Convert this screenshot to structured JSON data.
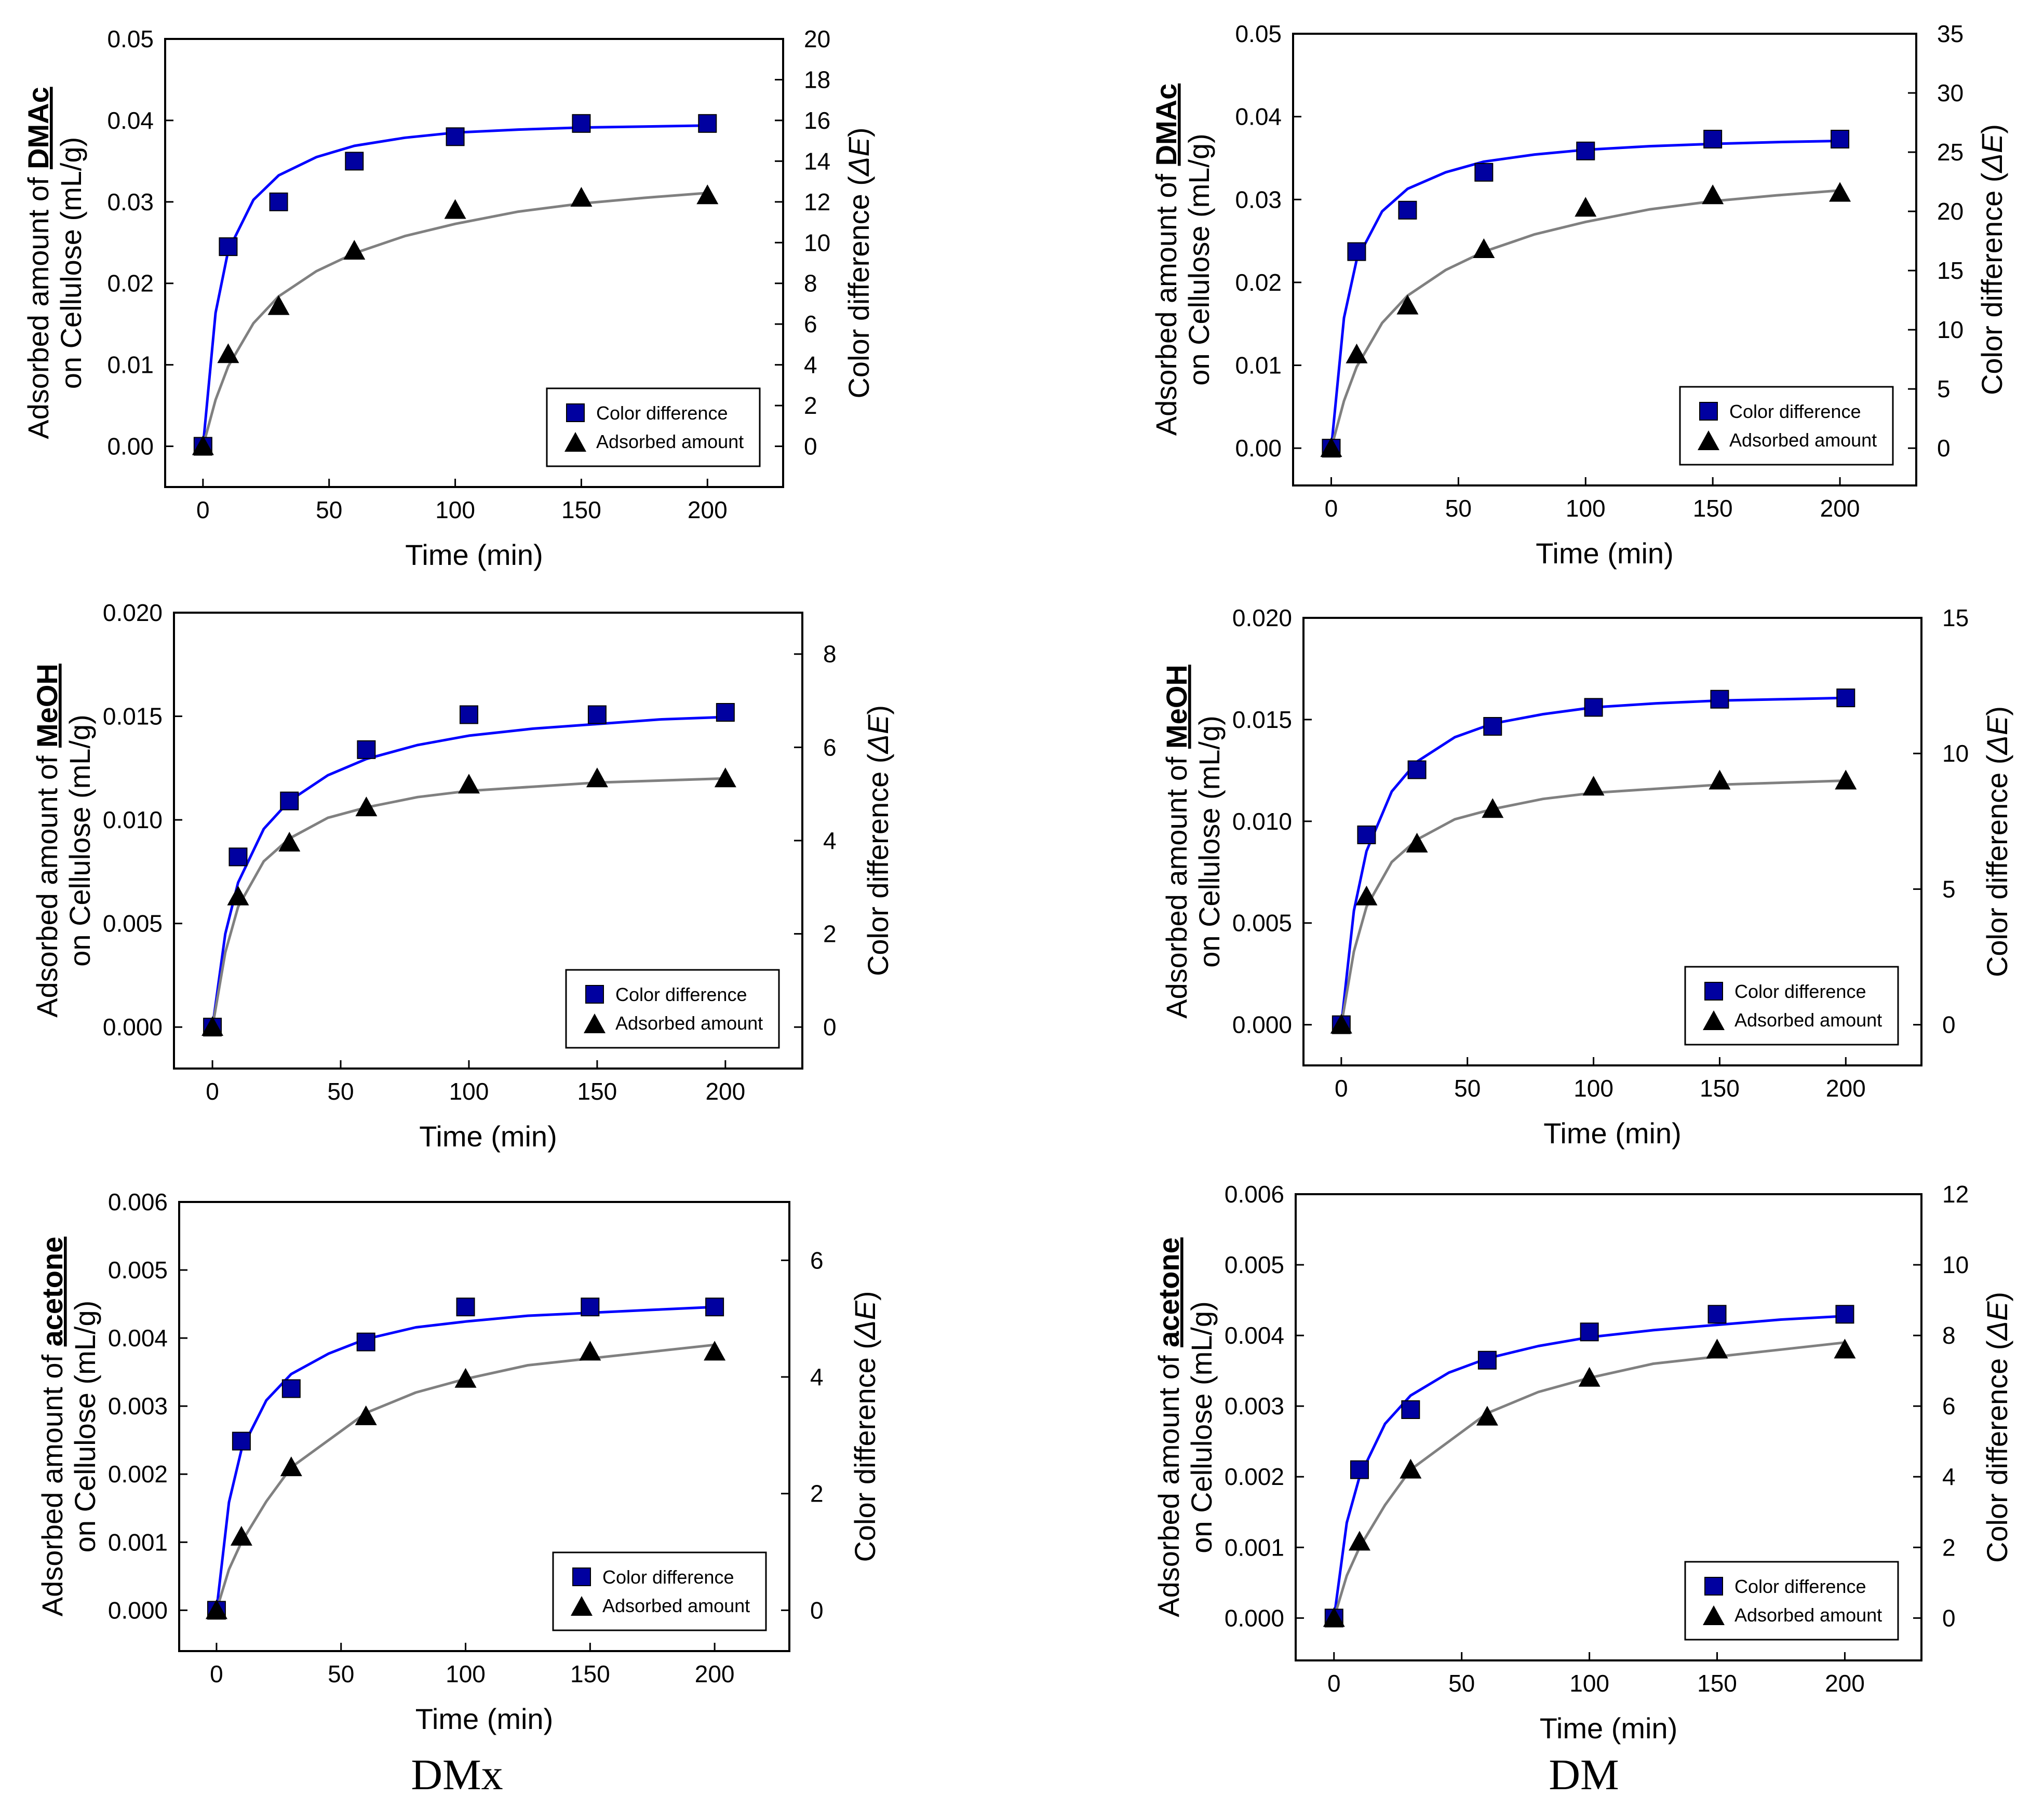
{
  "page": {
    "column_captions": [
      "DMx",
      "DM"
    ]
  },
  "legend": {
    "color_difference": "Color difference",
    "adsorbed_amount": "Adsorbed amount"
  },
  "chart_data": [
    {
      "type": "scatter",
      "xlabel": "Time (min)",
      "ylabel_prefix": "Adsorbed amount of ",
      "ylabel_compound": "DMAc",
      "ylabel_line2": "on Cellulose (mL/g)",
      "y2label_text": "Color difference (",
      "y2label_symbol": "ΔE",
      "y2label_close": ")",
      "xlim": [
        -15,
        230
      ],
      "xticks": [
        0,
        50,
        100,
        150,
        200
      ],
      "ylim": [
        -0.005,
        0.05
      ],
      "yticks": [
        0.0,
        0.01,
        0.02,
        0.03,
        0.04,
        0.05
      ],
      "ytick_decimals": 2,
      "y2ticks": [
        0,
        2,
        4,
        6,
        8,
        10,
        12,
        14,
        16,
        18,
        20
      ],
      "y2_per_y": 400,
      "legend_position": "bottom-right",
      "series": [
        {
          "name": "Color difference",
          "marker": "square",
          "axis": "right",
          "color": "#0000a0",
          "x": [
            0,
            10,
            30,
            60,
            100,
            150,
            200
          ],
          "y": [
            0,
            9.8,
            12.0,
            14.0,
            15.2,
            15.85,
            15.85
          ]
        },
        {
          "name": "Adsorbed amount",
          "marker": "triangle",
          "axis": "left",
          "color": "#000000",
          "x": [
            0,
            10,
            30,
            60,
            100,
            150,
            200
          ],
          "y": [
            0,
            0.0113,
            0.0172,
            0.024,
            0.029,
            0.0305,
            0.0308
          ]
        }
      ],
      "fit_lines": [
        {
          "color": "#0000ff",
          "axis": "right",
          "x": [
            0,
            5,
            10,
            20,
            30,
            45,
            60,
            80,
            100,
            125,
            150,
            175,
            200
          ],
          "y": [
            0,
            6.55,
            9.6,
            12.1,
            13.3,
            14.2,
            14.75,
            15.15,
            15.4,
            15.55,
            15.65,
            15.7,
            15.75
          ]
        },
        {
          "color": "#808080",
          "axis": "left",
          "x": [
            0,
            5,
            10,
            20,
            30,
            45,
            60,
            80,
            100,
            125,
            150,
            175,
            200
          ],
          "y": [
            0,
            0.0057,
            0.0098,
            0.0151,
            0.0184,
            0.0215,
            0.0237,
            0.0258,
            0.0273,
            0.0288,
            0.0298,
            0.0305,
            0.0311
          ]
        }
      ]
    },
    {
      "type": "scatter",
      "xlabel": "Time (min)",
      "ylabel_prefix": "Adsorbed amount of ",
      "ylabel_compound": "DMAc",
      "ylabel_line2": "on Cellulose (mL/g)",
      "y2label_text": "Color difference (",
      "y2label_symbol": "ΔE",
      "y2label_close": ")",
      "xlim": [
        -15,
        230
      ],
      "xticks": [
        0,
        50,
        100,
        150,
        200
      ],
      "ylim": [
        -0.0045,
        0.05
      ],
      "yticks": [
        0.0,
        0.01,
        0.02,
        0.03,
        0.04,
        0.05
      ],
      "ytick_decimals": 2,
      "y2ticks": [
        0,
        5,
        10,
        15,
        20,
        25,
        30,
        35
      ],
      "y2_per_y": 700,
      "legend_position": "bottom-right",
      "series": [
        {
          "name": "Color difference",
          "marker": "square",
          "axis": "right",
          "color": "#0000a0",
          "x": [
            0,
            10,
            30,
            60,
            100,
            150,
            200
          ],
          "y": [
            0,
            16.6,
            20.1,
            23.3,
            25.1,
            26.1,
            26.1
          ]
        },
        {
          "name": "Adsorbed amount",
          "marker": "triangle",
          "axis": "left",
          "color": "#000000",
          "x": [
            0,
            10,
            30,
            60,
            100,
            150,
            200
          ],
          "y": [
            0,
            0.0113,
            0.0172,
            0.024,
            0.029,
            0.0305,
            0.0308
          ]
        }
      ],
      "fit_lines": [
        {
          "color": "#0000ff",
          "axis": "right",
          "x": [
            0,
            5,
            10,
            20,
            30,
            45,
            60,
            80,
            100,
            125,
            150,
            175,
            200
          ],
          "y": [
            0,
            11.0,
            15.9,
            20.0,
            21.9,
            23.3,
            24.2,
            24.8,
            25.2,
            25.5,
            25.7,
            25.85,
            25.95
          ]
        },
        {
          "color": "#808080",
          "axis": "left",
          "x": [
            0,
            5,
            10,
            20,
            30,
            45,
            60,
            80,
            100,
            125,
            150,
            175,
            200
          ],
          "y": [
            0,
            0.0057,
            0.0098,
            0.0151,
            0.0184,
            0.0215,
            0.0237,
            0.0258,
            0.0273,
            0.0288,
            0.0298,
            0.0305,
            0.0311
          ]
        }
      ]
    },
    {
      "type": "scatter",
      "xlabel": "Time (min)",
      "ylabel_prefix": "Adsorbed amount of ",
      "ylabel_compound": "MeOH",
      "ylabel_line2": "on Cellulose (mL/g)",
      "y2label_text": "Color difference (",
      "y2label_symbol": "ΔE",
      "y2label_close": ")",
      "xlim": [
        -15,
        230
      ],
      "xticks": [
        0,
        50,
        100,
        150,
        200
      ],
      "ylim": [
        -0.002,
        0.02
      ],
      "yticks": [
        0.0,
        0.005,
        0.01,
        0.015,
        0.02
      ],
      "ytick_decimals": 3,
      "y2ticks": [
        0,
        2,
        4,
        6,
        8
      ],
      "y2_per_y": 444.4,
      "legend_position": "bottom-right",
      "series": [
        {
          "name": "Color difference",
          "marker": "square",
          "axis": "right",
          "color": "#0000a0",
          "x": [
            0,
            10,
            30,
            60,
            100,
            150,
            200
          ],
          "y": [
            0,
            3.65,
            4.85,
            5.95,
            6.7,
            6.7,
            6.75
          ]
        },
        {
          "name": "Adsorbed amount",
          "marker": "triangle",
          "axis": "left",
          "color": "#000000",
          "x": [
            0,
            10,
            30,
            60,
            100,
            150,
            200
          ],
          "y": [
            0,
            0.0063,
            0.0089,
            0.0106,
            0.0117,
            0.012,
            0.012
          ]
        }
      ],
      "fit_lines": [
        {
          "color": "#0000ff",
          "axis": "right",
          "x": [
            0,
            5,
            10,
            20,
            30,
            45,
            60,
            80,
            100,
            125,
            150,
            175,
            200
          ],
          "y": [
            0,
            2.0,
            3.1,
            4.25,
            4.85,
            5.4,
            5.75,
            6.05,
            6.25,
            6.4,
            6.5,
            6.6,
            6.65
          ]
        },
        {
          "color": "#808080",
          "axis": "left",
          "x": [
            0,
            5,
            10,
            20,
            30,
            45,
            60,
            80,
            100,
            125,
            150,
            175,
            200
          ],
          "y": [
            0,
            0.0036,
            0.0058,
            0.008,
            0.0091,
            0.0101,
            0.0106,
            0.0111,
            0.0114,
            0.0116,
            0.0118,
            0.0119,
            0.012
          ]
        }
      ]
    },
    {
      "type": "scatter",
      "xlabel": "Time (min)",
      "ylabel_prefix": "Adsorbed amount of ",
      "ylabel_compound": "MeOH",
      "ylabel_line2": "on Cellulose (mL/g)",
      "y2label_text": "Color difference (",
      "y2label_symbol": "ΔE",
      "y2label_close": ")",
      "xlim": [
        -15,
        230
      ],
      "xticks": [
        0,
        50,
        100,
        150,
        200
      ],
      "ylim": [
        -0.002,
        0.02
      ],
      "yticks": [
        0.0,
        0.005,
        0.01,
        0.015,
        0.02
      ],
      "ytick_decimals": 3,
      "y2ticks": [
        0,
        5,
        10,
        15
      ],
      "y2_per_y": 750,
      "legend_position": "bottom-right",
      "series": [
        {
          "name": "Color difference",
          "marker": "square",
          "axis": "right",
          "color": "#0000a0",
          "x": [
            0,
            10,
            30,
            60,
            100,
            150,
            200
          ],
          "y": [
            0,
            7.0,
            9.4,
            11.0,
            11.7,
            12.0,
            12.05
          ]
        },
        {
          "name": "Adsorbed amount",
          "marker": "triangle",
          "axis": "left",
          "color": "#000000",
          "x": [
            0,
            10,
            30,
            60,
            100,
            150,
            200
          ],
          "y": [
            0,
            0.0063,
            0.0089,
            0.0106,
            0.0117,
            0.012,
            0.012
          ]
        }
      ],
      "fit_lines": [
        {
          "color": "#0000ff",
          "axis": "right",
          "x": [
            0,
            5,
            10,
            20,
            30,
            45,
            60,
            80,
            100,
            125,
            150,
            175,
            200
          ],
          "y": [
            0,
            4.2,
            6.4,
            8.6,
            9.7,
            10.6,
            11.1,
            11.45,
            11.7,
            11.85,
            11.95,
            12.0,
            12.05
          ]
        },
        {
          "color": "#808080",
          "axis": "left",
          "x": [
            0,
            5,
            10,
            20,
            30,
            45,
            60,
            80,
            100,
            125,
            150,
            175,
            200
          ],
          "y": [
            0,
            0.0036,
            0.0058,
            0.008,
            0.0091,
            0.0101,
            0.0106,
            0.0111,
            0.0114,
            0.0116,
            0.0118,
            0.0119,
            0.012
          ]
        }
      ]
    },
    {
      "type": "scatter",
      "xlabel": "Time (min)",
      "ylabel_prefix": "Adsorbed amount of ",
      "ylabel_compound": "acetone",
      "ylabel_line2": "on Cellulose (mL/g)",
      "y2label_text": "Color difference (",
      "y2label_symbol": "ΔE",
      "y2label_close": ")",
      "xlim": [
        -15,
        230
      ],
      "xticks": [
        0,
        50,
        100,
        150,
        200
      ],
      "ylim": [
        -0.0006,
        0.006
      ],
      "yticks": [
        0.0,
        0.001,
        0.002,
        0.003,
        0.004,
        0.005,
        0.006
      ],
      "ytick_decimals": 3,
      "y2ticks": [
        0,
        2,
        4,
        6
      ],
      "y2_per_y": 1166.7,
      "legend_position": "bottom-right",
      "series": [
        {
          "name": "Color difference",
          "marker": "square",
          "axis": "right",
          "color": "#0000a0",
          "x": [
            0,
            10,
            30,
            60,
            100,
            150,
            200
          ],
          "y": [
            0,
            2.9,
            3.8,
            4.6,
            5.2,
            5.2,
            5.2
          ]
        },
        {
          "name": "Adsorbed amount",
          "marker": "triangle",
          "axis": "left",
          "color": "#000000",
          "x": [
            0,
            10,
            30,
            60,
            100,
            150,
            200
          ],
          "y": [
            0,
            0.00108,
            0.0021,
            0.00285,
            0.0034,
            0.0038,
            0.0038
          ]
        }
      ],
      "fit_lines": [
        {
          "color": "#0000ff",
          "axis": "right",
          "x": [
            0,
            5,
            10,
            20,
            30,
            45,
            60,
            80,
            100,
            125,
            150,
            175,
            200
          ],
          "y": [
            0,
            1.85,
            2.75,
            3.6,
            4.05,
            4.4,
            4.65,
            4.85,
            4.95,
            5.05,
            5.1,
            5.15,
            5.2
          ]
        },
        {
          "color": "#808080",
          "axis": "left",
          "x": [
            0,
            5,
            10,
            20,
            30,
            45,
            60,
            80,
            100,
            125,
            150,
            175,
            200
          ],
          "y": [
            0,
            0.0006,
            0.001,
            0.0016,
            0.0021,
            0.0025,
            0.0029,
            0.0032,
            0.0034,
            0.0036,
            0.0037,
            0.0038,
            0.0039
          ]
        }
      ]
    },
    {
      "type": "scatter",
      "xlabel": "Time (min)",
      "ylabel_prefix": "Adsorbed amount of ",
      "ylabel_compound": "acetone",
      "ylabel_line2": "on Cellulose (mL/g)",
      "y2label_text": "Color difference (",
      "y2label_symbol": "ΔE",
      "y2label_close": ")",
      "xlim": [
        -15,
        230
      ],
      "xticks": [
        0,
        50,
        100,
        150,
        200
      ],
      "ylim": [
        -0.0006,
        0.006
      ],
      "yticks": [
        0.0,
        0.001,
        0.002,
        0.003,
        0.004,
        0.005,
        0.006
      ],
      "ytick_decimals": 3,
      "y2ticks": [
        0,
        2,
        4,
        6,
        8,
        10,
        12
      ],
      "y2_per_y": 2000,
      "legend_position": "bottom-right",
      "series": [
        {
          "name": "Color difference",
          "marker": "square",
          "axis": "right",
          "color": "#0000a0",
          "x": [
            0,
            10,
            30,
            60,
            100,
            150,
            200
          ],
          "y": [
            0,
            4.2,
            5.9,
            7.3,
            8.1,
            8.6,
            8.6
          ]
        },
        {
          "name": "Adsorbed amount",
          "marker": "triangle",
          "axis": "left",
          "color": "#000000",
          "x": [
            0,
            10,
            30,
            60,
            100,
            150,
            200
          ],
          "y": [
            0,
            0.00108,
            0.0021,
            0.00285,
            0.0034,
            0.0038,
            0.0038
          ]
        }
      ],
      "fit_lines": [
        {
          "color": "#0000ff",
          "axis": "right",
          "x": [
            0,
            5,
            10,
            20,
            30,
            45,
            60,
            80,
            100,
            125,
            150,
            175,
            200
          ],
          "y": [
            0,
            2.7,
            4.0,
            5.5,
            6.3,
            6.95,
            7.35,
            7.7,
            7.95,
            8.15,
            8.3,
            8.45,
            8.55
          ]
        },
        {
          "color": "#808080",
          "axis": "left",
          "x": [
            0,
            5,
            10,
            20,
            30,
            45,
            60,
            80,
            100,
            125,
            150,
            175,
            200
          ],
          "y": [
            0,
            0.0006,
            0.001,
            0.0016,
            0.0021,
            0.0025,
            0.0029,
            0.0032,
            0.0034,
            0.0036,
            0.0037,
            0.0038,
            0.0039
          ]
        }
      ]
    }
  ]
}
